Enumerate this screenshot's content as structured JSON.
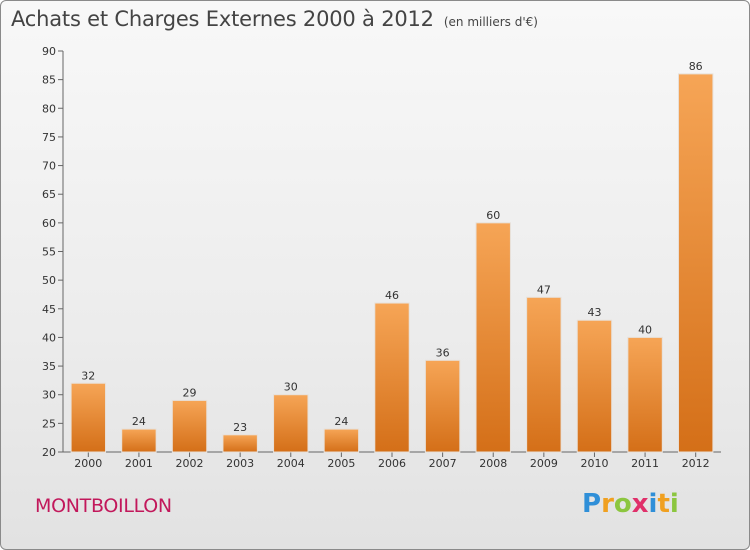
{
  "chart_data": {
    "type": "bar",
    "title": "Achats et Charges Externes 2000 à 2012",
    "subtitle": "(en milliers d'€)",
    "categories": [
      "2000",
      "2001",
      "2002",
      "2003",
      "2004",
      "2005",
      "2006",
      "2007",
      "2008",
      "2009",
      "2010",
      "2011",
      "2012"
    ],
    "values": [
      32,
      24,
      29,
      23,
      30,
      24,
      46,
      36,
      60,
      47,
      43,
      40,
      86
    ],
    "ylim": [
      20,
      90
    ],
    "yticks": [
      20,
      25,
      30,
      35,
      40,
      45,
      50,
      55,
      60,
      65,
      70,
      75,
      80,
      85,
      90
    ],
    "grid": false,
    "bar_color": "#f0963e",
    "bar_color_dark": "#d9741a"
  },
  "commune": "MONTBOILLON",
  "logo": {
    "letters": [
      {
        "ch": "P",
        "color": "#2f8fd8"
      },
      {
        "ch": "r",
        "color": "#f0a020"
      },
      {
        "ch": "o",
        "color": "#8cc63f"
      },
      {
        "ch": "x",
        "color": "#e0306a"
      },
      {
        "ch": "i",
        "color": "#2f8fd8"
      },
      {
        "ch": "t",
        "color": "#f0a020"
      },
      {
        "ch": "i",
        "color": "#8cc63f"
      }
    ]
  }
}
